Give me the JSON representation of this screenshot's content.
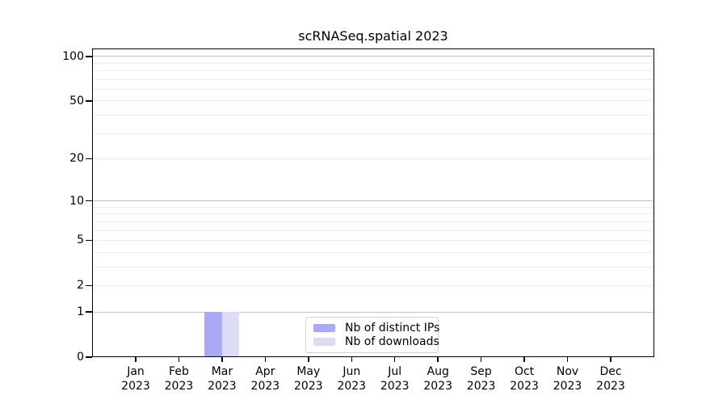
{
  "chart_data": {
    "type": "bar",
    "title": "scRNASeq.spatial 2023",
    "categories": [
      "Jan",
      "Feb",
      "Mar",
      "Apr",
      "May",
      "Jun",
      "Jul",
      "Aug",
      "Sep",
      "Oct",
      "Nov",
      "Dec"
    ],
    "x_tick_year": "2023",
    "series": [
      {
        "name": "Nb of distinct IPs",
        "color": "#a9a9f5",
        "values": [
          0,
          0,
          1,
          0,
          0,
          0,
          0,
          0,
          0,
          0,
          0,
          0
        ]
      },
      {
        "name": "Nb of downloads",
        "color": "#dcdcf8",
        "values": [
          0,
          0,
          1,
          0,
          0,
          0,
          0,
          0,
          0,
          0,
          0,
          0
        ]
      }
    ],
    "yscale": "log1p",
    "ylim": [
      0,
      113
    ],
    "y_tick_values": [
      0,
      1,
      2,
      5,
      10,
      20,
      50,
      100
    ],
    "y_major_gridlines": [
      1,
      10,
      100
    ],
    "y_minor_gridlines": [
      2,
      3,
      4,
      5,
      6,
      7,
      8,
      9,
      20,
      30,
      40,
      50,
      60,
      70,
      80,
      90
    ],
    "grid": "horizontal-only",
    "legend_position": "inside-bottom-center",
    "colors": {
      "major_grid": "#c3c3c3",
      "minor_grid": "#ececec",
      "axis": "#000000",
      "background": "#ffffff"
    }
  }
}
